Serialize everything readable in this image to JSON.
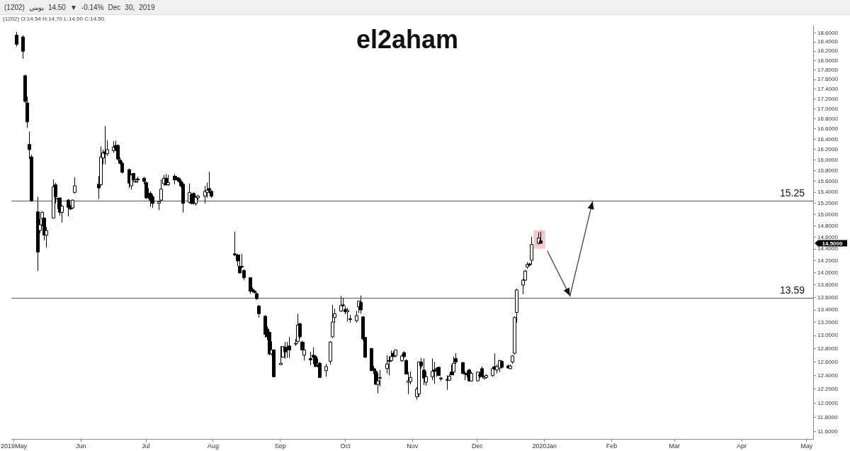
{
  "chart_data": {
    "type": "candlestick",
    "title": "el2aham",
    "subtitle": "(1202)   يومي   14.50 ▼ -0.14%   Dec 30, 2019",
    "annotations": [
      "(1202)  O:14.54  H:14.70  L:14.50  C:14.50",
      "14.5000"
    ],
    "log": "y",
    "xlim": [
      "2019-04-30",
      "2020-05-04"
    ],
    "xticks": [
      {
        "value": "2019-05-01",
        "label": "2019May"
      },
      {
        "value": "2019-06-01",
        "label": "Jun"
      },
      {
        "value": "2019-07-01",
        "label": "Jul"
      },
      {
        "value": "2019-08-01",
        "label": "Aug"
      },
      {
        "value": "2019-09-01",
        "label": "Sep"
      },
      {
        "value": "2019-10-01",
        "label": "Oct"
      },
      {
        "value": "2019-11-01",
        "label": "Nov"
      },
      {
        "value": "2019-12-01",
        "label": "Dec"
      },
      {
        "value": "2020-01-01",
        "label": "2020Jan"
      },
      {
        "value": "2020-02-01",
        "label": "Feb"
      },
      {
        "value": "2020-03-01",
        "label": "Mar"
      },
      {
        "value": "2020-04-01",
        "label": "Apr"
      },
      {
        "value": "2020-05-01",
        "label": "May"
      }
    ],
    "ylim": [
      11.5,
      18.75
    ],
    "yticks": [
      {
        "value": 11.6,
        "label": "11.6000"
      },
      {
        "value": 11.8,
        "label": "11.8000"
      },
      {
        "value": 12,
        "label": "12.0000"
      },
      {
        "value": 12.2,
        "label": "12.2000"
      },
      {
        "value": 12.4,
        "label": "12.4000"
      },
      {
        "value": 12.6,
        "label": "12.6000"
      },
      {
        "value": 12.8,
        "label": "12.8000"
      },
      {
        "value": 13,
        "label": "13.0000"
      },
      {
        "value": 13.2,
        "label": "13.2000"
      },
      {
        "value": 13.4,
        "label": "13.4000"
      },
      {
        "value": 13.6,
        "label": "13.6000"
      },
      {
        "value": 13.8,
        "label": "13.8000"
      },
      {
        "value": 14,
        "label": "14.0000"
      },
      {
        "value": 14.2,
        "label": "14.2000"
      },
      {
        "value": 14.4,
        "label": "14.4000"
      },
      {
        "value": 14.6,
        "label": "14.6000"
      },
      {
        "value": 14.8,
        "label": "14.8000"
      },
      {
        "value": 15,
        "label": "15.0000"
      },
      {
        "value": 15.2,
        "label": "15.2000"
      },
      {
        "value": 15.4,
        "label": "15.4000"
      },
      {
        "value": 15.6,
        "label": "15.6000"
      },
      {
        "value": 15.8,
        "label": "15.8000"
      },
      {
        "value": 16,
        "label": "16.0000"
      },
      {
        "value": 16.2,
        "label": "16.2000"
      },
      {
        "value": 16.4,
        "label": "16.4000"
      },
      {
        "value": 16.6,
        "label": "16.6000"
      },
      {
        "value": 16.8,
        "label": "16.8000"
      },
      {
        "value": 17,
        "label": "17.0000"
      },
      {
        "value": 17.2,
        "label": "17.2000"
      },
      {
        "value": 17.4,
        "label": "17.4000"
      },
      {
        "value": 17.6,
        "label": "17.6000"
      },
      {
        "value": 17.8,
        "label": "17.8000"
      },
      {
        "value": 18,
        "label": "18.0000"
      },
      {
        "value": 18.2,
        "label": "18.2000"
      },
      {
        "value": 18.4,
        "label": "18.4000"
      },
      {
        "value": 18.6,
        "label": "18.6000"
      }
    ],
    "ref_lines": [
      {
        "axis": "y",
        "value": 15.25,
        "label": "15.25",
        "color": "#555555"
      },
      {
        "axis": "y",
        "value": 13.59,
        "label": "13.59",
        "color": "#555555"
      }
    ],
    "x": [
      "2019-05-02",
      "2019-05-05",
      "2019-05-06",
      "2019-05-07",
      "2019-05-08",
      "2019-05-09",
      "2019-05-12",
      "2019-05-13",
      "2019-05-14",
      "2019-05-15",
      "2019-05-16",
      "2019-05-19",
      "2019-05-20",
      "2019-05-21",
      "2019-05-22",
      "2019-05-23",
      "2019-05-26",
      "2019-05-27",
      "2019-05-28",
      "2019-05-29",
      "2019-06-09",
      "2019-06-10",
      "2019-06-11",
      "2019-06-12",
      "2019-06-13",
      "2019-06-16",
      "2019-06-17",
      "2019-06-18",
      "2019-06-19",
      "2019-06-20",
      "2019-06-23",
      "2019-06-24",
      "2019-06-25",
      "2019-06-26",
      "2019-06-27",
      "2019-06-30",
      "2019-07-01",
      "2019-07-02",
      "2019-07-03",
      "2019-07-04",
      "2019-07-07",
      "2019-07-08",
      "2019-07-09",
      "2019-07-10",
      "2019-07-11",
      "2019-07-14",
      "2019-07-15",
      "2019-07-16",
      "2019-07-17",
      "2019-07-18",
      "2019-07-21",
      "2019-07-22",
      "2019-07-23",
      "2019-07-24",
      "2019-07-25",
      "2019-07-28",
      "2019-07-29",
      "2019-07-30",
      "2019-07-31",
      "2019-08-11",
      "2019-08-12",
      "2019-08-13",
      "2019-08-14",
      "2019-08-15",
      "2019-08-18",
      "2019-08-19",
      "2019-08-20",
      "2019-08-21",
      "2019-08-22",
      "2019-08-25",
      "2019-08-26",
      "2019-08-27",
      "2019-08-28",
      "2019-08-29",
      "2019-09-01",
      "2019-09-02",
      "2019-09-03",
      "2019-09-04",
      "2019-09-05",
      "2019-09-08",
      "2019-09-09",
      "2019-09-10",
      "2019-09-11",
      "2019-09-12",
      "2019-09-15",
      "2019-09-16",
      "2019-09-17",
      "2019-09-18",
      "2019-09-19",
      "2019-09-22",
      "2019-09-24",
      "2019-09-25",
      "2019-09-26",
      "2019-09-29",
      "2019-09-30",
      "2019-10-01",
      "2019-10-02",
      "2019-10-03",
      "2019-10-06",
      "2019-10-07",
      "2019-10-08",
      "2019-10-09",
      "2019-10-10",
      "2019-10-13",
      "2019-10-14",
      "2019-10-15",
      "2019-10-16",
      "2019-10-17",
      "2019-10-20",
      "2019-10-21",
      "2019-10-22",
      "2019-10-23",
      "2019-10-24",
      "2019-10-27",
      "2019-10-28",
      "2019-10-29",
      "2019-10-30",
      "2019-10-31",
      "2019-11-03",
      "2019-11-04",
      "2019-11-05",
      "2019-11-06",
      "2019-11-07",
      "2019-11-10",
      "2019-11-11",
      "2019-11-12",
      "2019-11-13",
      "2019-11-14",
      "2019-11-17",
      "2019-11-18",
      "2019-11-19",
      "2019-11-20",
      "2019-11-21",
      "2019-11-24",
      "2019-11-25",
      "2019-11-26",
      "2019-11-27",
      "2019-11-28",
      "2019-12-01",
      "2019-12-02",
      "2019-12-03",
      "2019-12-04",
      "2019-12-05",
      "2019-12-08",
      "2019-12-09",
      "2019-12-10",
      "2019-12-11",
      "2019-12-12",
      "2019-12-15",
      "2019-12-16",
      "2019-12-17",
      "2019-12-18",
      "2019-12-19",
      "2019-12-22",
      "2019-12-23",
      "2019-12-24",
      "2019-12-25",
      "2019-12-26",
      "2019-12-29",
      "2019-12-30"
    ],
    "ohlc": [
      [
        18.55,
        18.62,
        18.3,
        18.35
      ],
      [
        18.51,
        18.55,
        18.04,
        18.2
      ],
      [
        17.68,
        17.7,
        17.12,
        17.15
      ],
      [
        17.12,
        17.25,
        16.62,
        16.74
      ],
      [
        16.3,
        16.55,
        16.02,
        16.2
      ],
      [
        16.06,
        16.1,
        15.23,
        15.25
      ],
      [
        15.05,
        15.32,
        14.03,
        14.35
      ],
      [
        14.72,
        14.92,
        14.68,
        14.82
      ],
      [
        14.93,
        15.06,
        14.8,
        15.04
      ],
      [
        14.94,
        14.95,
        14.55,
        14.64
      ],
      [
        14.64,
        14.78,
        14.43,
        14.72
      ],
      [
        14.94,
        15.64,
        14.94,
        15.5
      ],
      [
        15.54,
        15.58,
        15.2,
        15.32
      ],
      [
        15.29,
        15.3,
        15.1,
        15.28
      ],
      [
        15.3,
        15.31,
        14.98,
        15.04
      ],
      [
        15.04,
        15.17,
        14.86,
        15.15
      ],
      [
        15.26,
        15.28,
        14.97,
        15.13
      ],
      [
        15.13,
        15.17,
        15.08,
        15.1
      ],
      [
        15.12,
        15.27,
        15.1,
        15.26
      ],
      [
        15.4,
        15.68,
        15.38,
        15.52
      ],
      [
        15.55,
        15.7,
        15.28,
        15.48
      ],
      [
        15.54,
        16.26,
        15.52,
        16.06
      ],
      [
        16.04,
        16.2,
        15.92,
        16.14
      ],
      [
        16.16,
        16.66,
        15.92,
        16.12
      ],
      [
        16.12,
        16.38,
        16.08,
        16.2
      ],
      [
        16.18,
        16.36,
        16.14,
        16.25
      ],
      [
        16.28,
        16.37,
        16.17,
        16.2
      ],
      [
        16.28,
        16.3,
        15.99,
        16.02
      ],
      [
        16.0,
        16.05,
        15.92,
        15.94
      ],
      [
        15.94,
        15.98,
        15.75,
        15.77
      ],
      [
        15.82,
        15.84,
        15.48,
        15.57
      ],
      [
        15.52,
        15.74,
        15.45,
        15.72
      ],
      [
        15.75,
        15.76,
        15.6,
        15.63
      ],
      [
        15.6,
        15.64,
        15.58,
        15.6
      ],
      [
        15.65,
        15.69,
        15.58,
        15.63
      ],
      [
        15.66,
        15.69,
        15.55,
        15.6
      ],
      [
        15.58,
        15.6,
        15.28,
        15.3
      ],
      [
        15.38,
        15.48,
        15.28,
        15.34
      ],
      [
        15.38,
        15.42,
        15.14,
        15.26
      ],
      [
        15.32,
        15.36,
        15.12,
        15.2
      ],
      [
        15.2,
        15.25,
        15.08,
        15.23
      ],
      [
        15.26,
        15.64,
        15.24,
        15.46
      ],
      [
        15.56,
        15.72,
        15.52,
        15.66
      ],
      [
        15.66,
        15.74,
        15.52,
        15.54
      ],
      [
        15.54,
        15.72,
        15.52,
        15.58
      ],
      [
        15.7,
        15.74,
        15.55,
        15.63
      ],
      [
        15.67,
        15.7,
        15.62,
        15.65
      ],
      [
        15.66,
        15.68,
        15.58,
        15.6
      ],
      [
        15.6,
        15.64,
        15.49,
        15.52
      ],
      [
        15.55,
        15.58,
        15.04,
        15.2
      ],
      [
        15.22,
        15.56,
        15.2,
        15.4
      ],
      [
        15.36,
        15.38,
        15.18,
        15.2
      ],
      [
        15.38,
        15.4,
        15.18,
        15.2
      ],
      [
        15.2,
        15.34,
        15.16,
        15.31
      ],
      [
        15.3,
        15.36,
        15.26,
        15.33
      ],
      [
        15.33,
        15.52,
        15.2,
        15.42
      ],
      [
        15.4,
        15.58,
        15.3,
        15.44
      ],
      [
        15.47,
        15.78,
        15.38,
        15.44
      ],
      [
        15.42,
        15.44,
        15.3,
        15.33
      ],
      [
        14.32,
        14.7,
        14.28,
        14.3
      ],
      [
        14.3,
        14.32,
        14.11,
        14.2
      ],
      [
        14.11,
        14.31,
        13.99,
        14.0
      ],
      [
        14.11,
        14.32,
        14.08,
        14.1
      ],
      [
        14.04,
        14.06,
        13.88,
        13.92
      ],
      [
        13.92,
        13.93,
        13.66,
        13.7
      ],
      [
        13.73,
        13.76,
        13.68,
        13.7
      ],
      [
        13.7,
        13.72,
        13.66,
        13.68
      ],
      [
        13.66,
        13.68,
        13.56,
        13.58
      ],
      [
        13.46,
        13.48,
        13.28,
        13.34
      ],
      [
        13.3,
        13.32,
        12.97,
        13.02
      ],
      [
        13.1,
        13.14,
        12.93,
        12.98
      ],
      [
        13.05,
        13.06,
        12.7,
        12.72
      ],
      [
        12.72,
        12.91,
        12.7,
        12.78
      ],
      [
        12.78,
        12.79,
        12.38,
        12.38
      ],
      [
        12.56,
        12.84,
        12.55,
        12.58
      ],
      [
        12.67,
        12.84,
        12.66,
        12.83
      ],
      [
        12.82,
        12.9,
        12.65,
        12.75
      ],
      [
        12.8,
        12.9,
        12.66,
        12.8
      ],
      [
        12.84,
        12.98,
        12.66,
        12.78
      ],
      [
        12.88,
        12.95,
        12.84,
        12.88
      ],
      [
        12.91,
        13.34,
        12.88,
        13.16
      ],
      [
        13.18,
        13.2,
        12.96,
        12.98
      ],
      [
        12.9,
        12.92,
        12.78,
        12.78
      ],
      [
        12.7,
        12.9,
        12.62,
        12.78
      ],
      [
        12.65,
        12.75,
        12.55,
        12.63
      ],
      [
        12.7,
        12.82,
        12.57,
        12.67
      ],
      [
        12.68,
        12.7,
        12.53,
        12.53
      ],
      [
        12.56,
        12.65,
        12.52,
        12.58
      ],
      [
        12.58,
        12.6,
        12.37,
        12.37
      ],
      [
        12.47,
        12.57,
        12.38,
        12.53
      ],
      [
        12.61,
        12.91,
        12.56,
        12.9
      ],
      [
        12.98,
        13.48,
        12.96,
        13.21
      ],
      [
        13.28,
        13.42,
        13.2,
        13.34
      ],
      [
        13.38,
        13.62,
        13.37,
        13.47
      ],
      [
        13.48,
        13.59,
        13.45,
        13.47
      ],
      [
        13.41,
        13.46,
        13.33,
        13.37
      ],
      [
        13.37,
        13.43,
        13.22,
        13.39
      ],
      [
        13.26,
        13.32,
        13.2,
        13.26
      ],
      [
        13.23,
        13.38,
        13.2,
        13.31
      ],
      [
        13.45,
        13.55,
        13.35,
        13.54
      ],
      [
        13.52,
        13.63,
        13.34,
        13.4
      ],
      [
        13.29,
        13.3,
        12.92,
        12.95
      ],
      [
        12.97,
        12.98,
        12.66,
        12.67
      ],
      [
        12.8,
        12.81,
        12.47,
        12.47
      ],
      [
        12.5,
        12.54,
        12.42,
        12.47
      ],
      [
        12.46,
        12.5,
        12.27,
        12.27
      ],
      [
        12.27,
        12.44,
        12.14,
        12.32
      ],
      [
        12.37,
        12.48,
        12.24,
        12.37
      ],
      [
        12.5,
        12.7,
        12.43,
        12.57
      ],
      [
        12.62,
        12.68,
        12.4,
        12.61
      ],
      [
        12.62,
        12.77,
        12.6,
        12.68
      ],
      [
        12.73,
        12.76,
        12.68,
        12.68
      ],
      [
        12.69,
        12.78,
        12.67,
        12.78
      ],
      [
        12.62,
        12.71,
        12.6,
        12.69
      ],
      [
        12.74,
        12.76,
        12.66,
        12.68
      ],
      [
        12.62,
        12.64,
        12.42,
        12.42
      ],
      [
        12.3,
        12.45,
        12.13,
        12.32
      ],
      [
        12.31,
        12.46,
        12.27,
        12.37
      ],
      [
        12.09,
        12.23,
        12.05,
        12.2
      ],
      [
        12.13,
        12.6,
        12.09,
        12.6
      ],
      [
        12.6,
        12.66,
        12.5,
        12.54
      ],
      [
        12.48,
        12.65,
        12.26,
        12.36
      ],
      [
        12.3,
        12.46,
        12.25,
        12.38
      ],
      [
        12.38,
        12.65,
        12.33,
        12.46
      ],
      [
        12.48,
        12.6,
        12.28,
        12.46
      ],
      [
        12.5,
        12.52,
        12.38,
        12.5
      ],
      [
        12.52,
        12.53,
        12.39,
        12.4
      ],
      [
        12.36,
        12.38,
        12.32,
        12.35
      ],
      [
        12.34,
        12.4,
        12.19,
        12.33
      ],
      [
        12.33,
        12.42,
        12.32,
        12.39
      ],
      [
        12.45,
        12.56,
        12.4,
        12.41
      ],
      [
        12.45,
        12.68,
        12.4,
        12.58
      ],
      [
        12.65,
        12.73,
        12.57,
        12.6
      ],
      [
        12.59,
        12.6,
        12.42,
        12.43
      ],
      [
        12.43,
        12.46,
        12.33,
        12.42
      ],
      [
        12.43,
        12.47,
        12.37,
        12.41
      ],
      [
        12.48,
        12.5,
        12.31,
        12.32
      ],
      [
        12.32,
        12.45,
        12.31,
        12.43
      ],
      [
        12.32,
        12.46,
        12.31,
        12.45
      ],
      [
        12.41,
        12.45,
        12.36,
        12.39
      ],
      [
        12.5,
        12.53,
        12.38,
        12.38
      ],
      [
        12.36,
        12.39,
        12.34,
        12.38
      ],
      [
        12.37,
        12.42,
        12.35,
        12.4
      ],
      [
        12.4,
        12.53,
        12.38,
        12.5
      ],
      [
        12.53,
        12.73,
        12.49,
        12.49
      ],
      [
        12.48,
        12.56,
        12.43,
        12.53
      ],
      [
        12.51,
        12.63,
        12.45,
        12.62
      ],
      [
        12.61,
        12.62,
        12.5,
        12.52
      ],
      [
        12.54,
        12.56,
        12.5,
        12.51
      ],
      [
        12.5,
        12.56,
        12.49,
        12.54
      ],
      [
        12.6,
        12.7,
        12.57,
        12.69
      ],
      [
        12.73,
        13.3,
        12.71,
        13.28
      ],
      [
        13.36,
        13.74,
        13.2,
        13.72
      ],
      [
        13.8,
        13.9,
        13.65,
        13.88
      ],
      [
        13.88,
        14.05,
        13.87,
        14.03
      ],
      [
        14.1,
        14.18,
        14.07,
        14.14
      ],
      [
        14.15,
        14.17,
        14.11,
        14.13
      ],
      [
        14.21,
        14.61,
        14.14,
        14.48
      ],
      [
        14.5,
        14.69,
        14.48,
        14.59
      ],
      [
        14.54,
        14.7,
        14.5,
        14.5
      ]
    ]
  }
}
